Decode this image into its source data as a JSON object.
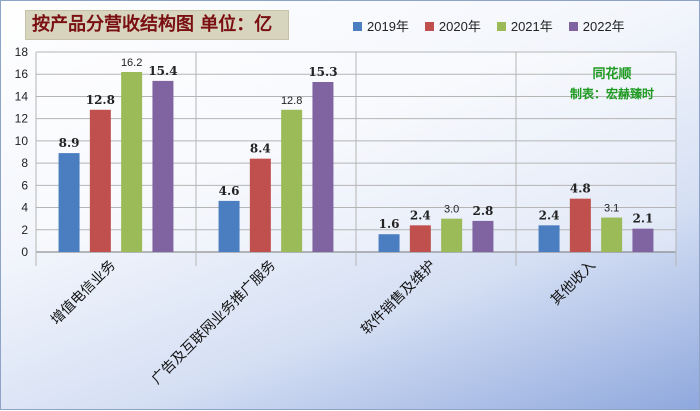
{
  "title": "按产品分营收结构图 单位：亿",
  "watermark": {
    "brand": "同花顺",
    "note": "制表：宏赫臻时"
  },
  "colors": [
    "#4a7ec0",
    "#c0504d",
    "#9bbb59",
    "#8064a2"
  ],
  "chart_data": {
    "type": "bar",
    "categories": [
      "增值电信业务",
      "广告及互联网业务推广服务",
      "软件销售及维护",
      "其他收入"
    ],
    "series": [
      {
        "name": "2019年",
        "values": [
          8.9,
          4.6,
          1.6,
          2.4
        ]
      },
      {
        "name": "2020年",
        "values": [
          12.8,
          8.4,
          2.4,
          4.8
        ]
      },
      {
        "name": "2021年",
        "values": [
          16.2,
          12.8,
          3.0,
          3.1
        ]
      },
      {
        "name": "2022年",
        "values": [
          15.4,
          15.3,
          2.8,
          2.1
        ]
      }
    ],
    "data_labels": [
      [
        "8.9",
        "12.8",
        "16.2",
        "15.4"
      ],
      [
        "4.6",
        "8.4",
        "12.8",
        "15.3"
      ],
      [
        "1.6",
        "2.4",
        "3.0",
        "2.8"
      ],
      [
        "2.4",
        "4.8",
        "3.1",
        "2.1"
      ]
    ],
    "title": "按产品分营收结构图 单位：亿",
    "xlabel": "",
    "ylabel": "",
    "ylim": [
      0,
      18
    ],
    "yticks": [
      "0",
      "2",
      "4",
      "6",
      "8",
      "10",
      "12",
      "14",
      "16",
      "18"
    ],
    "grid": true,
    "legend_position": "top-right"
  }
}
